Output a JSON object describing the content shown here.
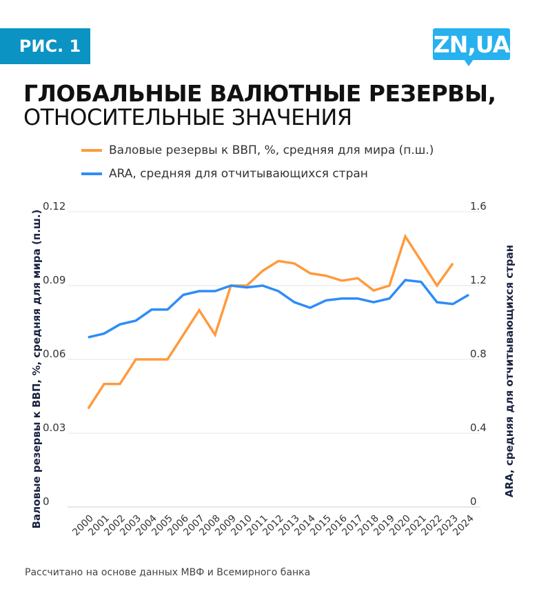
{
  "badge": "РИС. 1",
  "logo": "ZN,UA",
  "title_line1": "ГЛОБАЛЬНЫЕ ВАЛЮТНЫЕ РЕЗЕРВЫ,",
  "title_line2": "ОТНОСИТЕЛЬНЫЕ ЗНАЧЕНИЯ",
  "note": "Рассчитано на основе данных МВФ и Всемирного банка",
  "chart_data": {
    "type": "line",
    "x": [
      "2000",
      "2001",
      "2002",
      "2003",
      "2004",
      "2005",
      "2006",
      "2007",
      "2008",
      "2009",
      "2010",
      "2011",
      "2012",
      "2013",
      "2014",
      "2015",
      "2016",
      "2017",
      "2018",
      "2019",
      "2020",
      "2021",
      "2022",
      "2023",
      "2024"
    ],
    "series": [
      {
        "name": "Валовые резервы к ВВП, %, средняя для мира (п.ш.)",
        "axis": "left",
        "color": "#ff9a3c",
        "values": [
          0.04,
          0.05,
          0.05,
          0.06,
          0.06,
          0.06,
          0.07,
          0.08,
          0.07,
          0.09,
          0.09,
          0.096,
          0.1,
          0.099,
          0.095,
          0.094,
          0.092,
          0.093,
          0.088,
          0.09,
          0.11,
          0.1,
          0.09,
          0.099,
          null
        ]
      },
      {
        "name": "ARA, средняя для отчитывающихся стран",
        "axis": "right",
        "color": "#2e8cf7",
        "values": [
          0.92,
          0.94,
          0.99,
          1.01,
          1.07,
          1.07,
          1.15,
          1.17,
          1.17,
          1.2,
          1.19,
          1.2,
          1.17,
          1.11,
          1.08,
          1.12,
          1.13,
          1.13,
          1.11,
          1.13,
          1.23,
          1.22,
          1.11,
          1.1,
          1.15
        ]
      }
    ],
    "ylabel": "Валовые резервы к ВВП, %, средняя для мира (п.ш.)",
    "y2label": "ARA, средняя для отчитывающихся стран",
    "ylim": [
      0,
      0.12
    ],
    "y2lim": [
      0,
      1.6
    ],
    "yticks": [
      "0",
      "0.03",
      "0.06",
      "0.09",
      "0.12"
    ],
    "y2ticks": [
      "0",
      "0.4",
      "0.8",
      "1.2",
      "1.6"
    ],
    "grid": true,
    "legend": "top"
  }
}
